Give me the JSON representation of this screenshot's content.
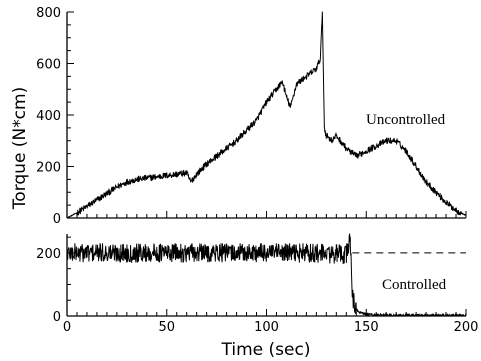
{
  "chart_data": [
    {
      "id": "top",
      "type": "line",
      "title": "",
      "xlabel": "",
      "ylabel": "",
      "xlim": [
        0,
        200
      ],
      "ylim": [
        0,
        800
      ],
      "x_ticks": [
        0,
        50,
        100,
        150,
        200
      ],
      "y_ticks": [
        0,
        200,
        400,
        600,
        800
      ],
      "y_tick_labels": [
        "0",
        "200",
        "400",
        "600",
        "800"
      ],
      "grid": false,
      "annotation": "Uncontrolled",
      "series": [
        {
          "style": "noisy-solid",
          "noise": 12,
          "x": [
            0,
            5,
            10,
            15,
            20,
            25,
            30,
            35,
            40,
            45,
            50,
            55,
            60,
            62,
            65,
            70,
            75,
            80,
            85,
            90,
            95,
            100,
            105,
            108,
            110,
            112,
            115,
            120,
            125,
            127,
            128,
            129,
            130,
            133,
            135,
            140,
            145,
            150,
            155,
            160,
            165,
            170,
            175,
            180,
            185,
            190,
            195,
            200
          ],
          "y": [
            0,
            20,
            45,
            70,
            95,
            120,
            140,
            150,
            155,
            160,
            165,
            170,
            175,
            140,
            170,
            210,
            240,
            270,
            300,
            340,
            380,
            450,
            500,
            530,
            470,
            430,
            520,
            550,
            580,
            620,
            800,
            350,
            320,
            300,
            320,
            270,
            240,
            260,
            280,
            300,
            300,
            260,
            200,
            140,
            100,
            60,
            30,
            10
          ]
        }
      ]
    },
    {
      "id": "bottom",
      "type": "line",
      "title": "",
      "xlabel": "Time (sec)",
      "ylabel": "",
      "xlim": [
        0,
        200
      ],
      "ylim": [
        0,
        260
      ],
      "x_ticks": [
        0,
        50,
        100,
        150,
        200
      ],
      "x_tick_labels": [
        "0",
        "50",
        "100",
        "150",
        "200"
      ],
      "y_ticks": [
        0,
        200
      ],
      "y_tick_labels": [
        "0",
        "200"
      ],
      "grid": false,
      "annotation": "Controlled",
      "series": [
        {
          "style": "noisy-solid",
          "noise": 30,
          "x": [
            0,
            20,
            40,
            60,
            80,
            100,
            120,
            140,
            142,
            143,
            145,
            147,
            150,
            160,
            170,
            180,
            190,
            200
          ],
          "y": [
            200,
            200,
            200,
            200,
            200,
            200,
            200,
            195,
            250,
            60,
            20,
            10,
            5,
            3,
            2,
            2,
            2,
            2
          ]
        },
        {
          "style": "dashed",
          "noise": 0,
          "x": [
            143,
            200
          ],
          "y": [
            200,
            200
          ]
        }
      ]
    }
  ],
  "shared_ylabel": "Torque (N*cm)"
}
